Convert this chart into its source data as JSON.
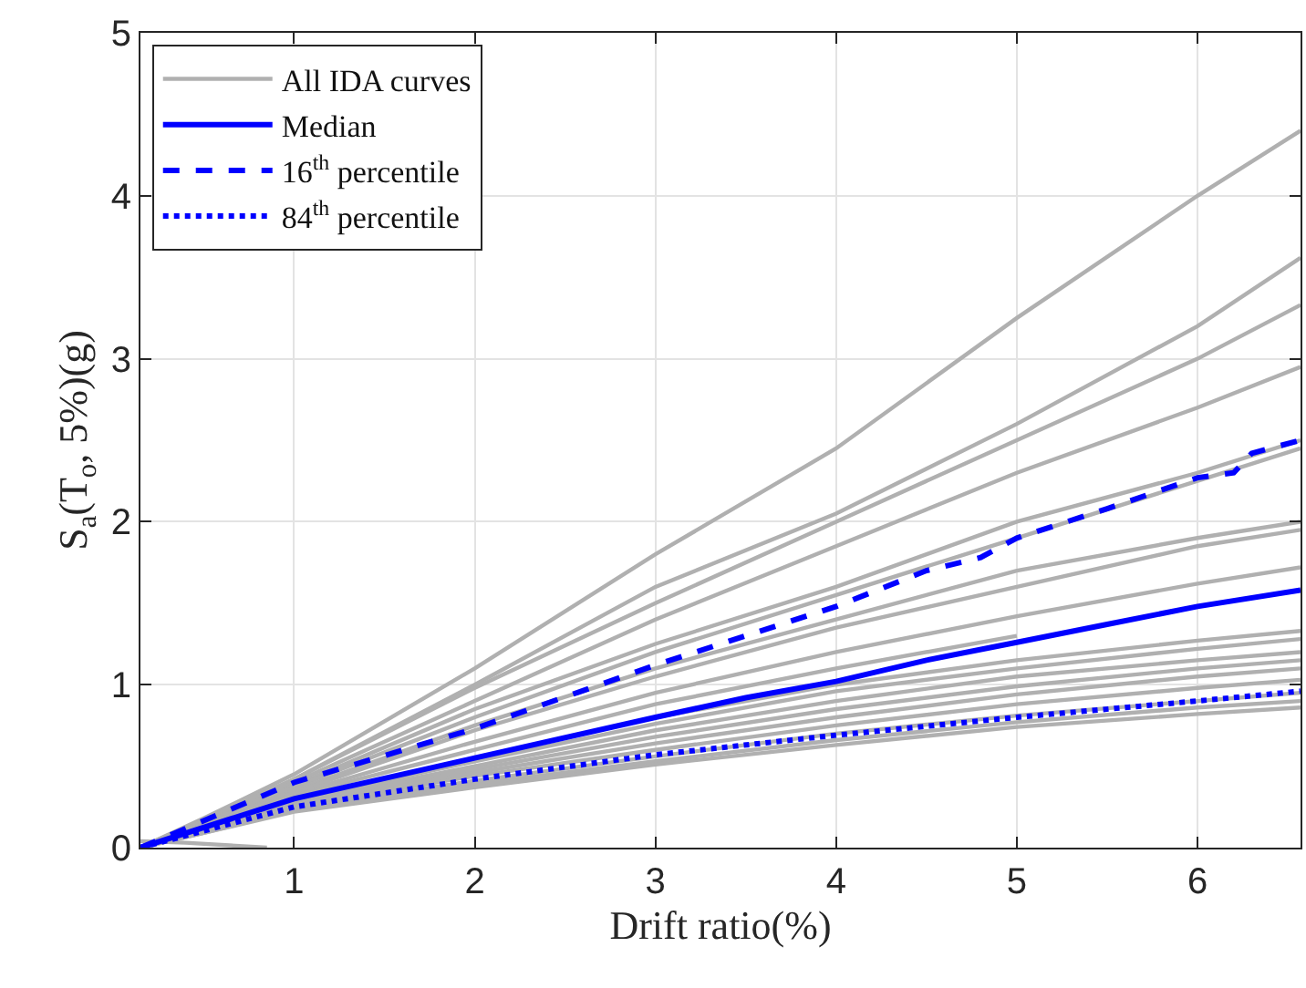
{
  "chart_data": {
    "type": "line",
    "xlabel": "Drift ratio(%)",
    "ylabel": "S$_{a}$(T$_{o}$, 5%)(g)",
    "x": [
      0.15,
      0.5,
      1,
      2,
      3,
      4,
      5,
      6,
      6.57
    ],
    "xlim": [
      0.15,
      6.57
    ],
    "ylim": [
      0,
      5
    ],
    "xticks": [
      1,
      2,
      3,
      4,
      5,
      6
    ],
    "yticks": [
      0,
      1,
      2,
      3,
      4,
      5
    ],
    "grid": true,
    "legend": "top left",
    "marker": "none",
    "series": [
      {
        "name": "All IDA curves",
        "color": "#b0b0b0",
        "line_style": "solid",
        "values": [
          0,
          0.18,
          0.45,
          1.1,
          1.8,
          2.45,
          3.25,
          4.0,
          4.4
        ]
      },
      {
        "color": "#b0b0b0",
        "line_style": "solid",
        "values": [
          0,
          0.17,
          0.42,
          1.0,
          1.6,
          2.05,
          2.6,
          3.2,
          3.62
        ]
      },
      {
        "color": "#b0b0b0",
        "line_style": "solid",
        "values": [
          0,
          0.17,
          0.42,
          0.98,
          1.5,
          2.0,
          2.5,
          3.0,
          3.33
        ]
      },
      {
        "color": "#b0b0b0",
        "line_style": "solid",
        "values": [
          0,
          0.16,
          0.4,
          0.9,
          1.4,
          1.85,
          2.3,
          2.7,
          2.95
        ]
      },
      {
        "color": "#b0b0b0",
        "line_style": "solid",
        "values": [
          0,
          0.15,
          0.38,
          0.85,
          1.25,
          1.6,
          2.0,
          2.3,
          2.5
        ]
      },
      {
        "color": "#b0b0b0",
        "line_style": "solid",
        "values": [
          0,
          0.15,
          0.37,
          0.8,
          1.2,
          1.55,
          1.9,
          2.25,
          2.45
        ]
      },
      {
        "color": "#b0b0b0",
        "line_style": "solid",
        "values": [
          0,
          0.14,
          0.35,
          0.75,
          1.1,
          1.4,
          1.7,
          1.9,
          2.0
        ]
      },
      {
        "color": "#b0b0b0",
        "line_style": "solid",
        "values": [
          0,
          0.14,
          0.34,
          0.72,
          1.05,
          1.35,
          1.6,
          1.85,
          1.95
        ]
      },
      {
        "color": "#b0b0b0",
        "line_style": "solid",
        "values": [
          0,
          0.13,
          0.33,
          0.65,
          0.95,
          1.2,
          1.42,
          1.62,
          1.72
        ]
      },
      {
        "color": "#b0b0b0",
        "line_style": "solid",
        "values": [
          0,
          0.13,
          0.32,
          0.6,
          0.88,
          1.1,
          1.3,
          null,
          null
        ]
      },
      {
        "color": "#b0b0b0",
        "line_style": "solid",
        "values": [
          0,
          0.12,
          0.3,
          0.55,
          0.8,
          1.0,
          1.15,
          1.27,
          1.33
        ]
      },
      {
        "color": "#b0b0b0",
        "line_style": "solid",
        "values": [
          0,
          0.12,
          0.29,
          0.53,
          0.76,
          0.96,
          1.1,
          1.22,
          1.28
        ]
      },
      {
        "color": "#b0b0b0",
        "line_style": "solid",
        "values": [
          0,
          0.11,
          0.28,
          0.5,
          0.72,
          0.9,
          1.05,
          1.15,
          1.2
        ]
      },
      {
        "color": "#b0b0b0",
        "line_style": "solid",
        "values": [
          0,
          0.11,
          0.27,
          0.48,
          0.68,
          0.85,
          0.99,
          1.1,
          1.15
        ]
      },
      {
        "color": "#b0b0b0",
        "line_style": "solid",
        "values": [
          0,
          0.1,
          0.26,
          0.46,
          0.64,
          0.8,
          0.94,
          1.05,
          1.1
        ]
      },
      {
        "color": "#b0b0b0",
        "line_style": "solid",
        "values": [
          0,
          0.1,
          0.25,
          0.44,
          0.6,
          0.75,
          0.88,
          0.98,
          1.03
        ]
      },
      {
        "color": "#b0b0b0",
        "line_style": "solid",
        "values": [
          0,
          0.1,
          0.24,
          0.41,
          0.56,
          0.7,
          0.81,
          0.9,
          0.95
        ]
      },
      {
        "color": "#b0b0b0",
        "line_style": "solid",
        "values": [
          0,
          0.09,
          0.23,
          0.39,
          0.53,
          0.66,
          0.77,
          0.86,
          0.9
        ]
      },
      {
        "color": "#b0b0b0",
        "line_style": "solid",
        "values": [
          0,
          0.09,
          0.22,
          0.37,
          0.51,
          0.63,
          0.74,
          0.82,
          0.86
        ]
      },
      {
        "color": "#b0b0b0",
        "line_style": "solid",
        "x": [
          0.15,
          0.4,
          0.85
        ],
        "values": [
          0.04,
          0.03,
          0
        ]
      },
      {
        "name": "Median",
        "color": "#0000ff",
        "line_style": "solid",
        "x": [
          0.15,
          1,
          2,
          3,
          3.5,
          4,
          4.5,
          5,
          5.5,
          6,
          6.57
        ],
        "values": [
          0,
          0.3,
          0.55,
          0.8,
          0.92,
          1.02,
          1.15,
          1.26,
          1.37,
          1.48,
          1.58
        ]
      },
      {
        "name": "16$^{th}$ percentile",
        "color": "#0000ff",
        "line_style": "dashed",
        "x": [
          0.15,
          1,
          2,
          3,
          4,
          4.5,
          4.8,
          5,
          5.5,
          6,
          6.2,
          6.3,
          6.57
        ],
        "values": [
          0,
          0.4,
          0.73,
          1.12,
          1.48,
          1.7,
          1.78,
          1.9,
          2.08,
          2.27,
          2.3,
          2.42,
          2.5
        ]
      },
      {
        "name": "84$^{th}$ percentile",
        "color": "#0000ff",
        "line_style": "dotted",
        "x": [
          0.15,
          1,
          2,
          3,
          4,
          5,
          6,
          6.57
        ],
        "values": [
          0,
          0.25,
          0.42,
          0.57,
          0.69,
          0.8,
          0.9,
          0.96
        ]
      }
    ]
  }
}
